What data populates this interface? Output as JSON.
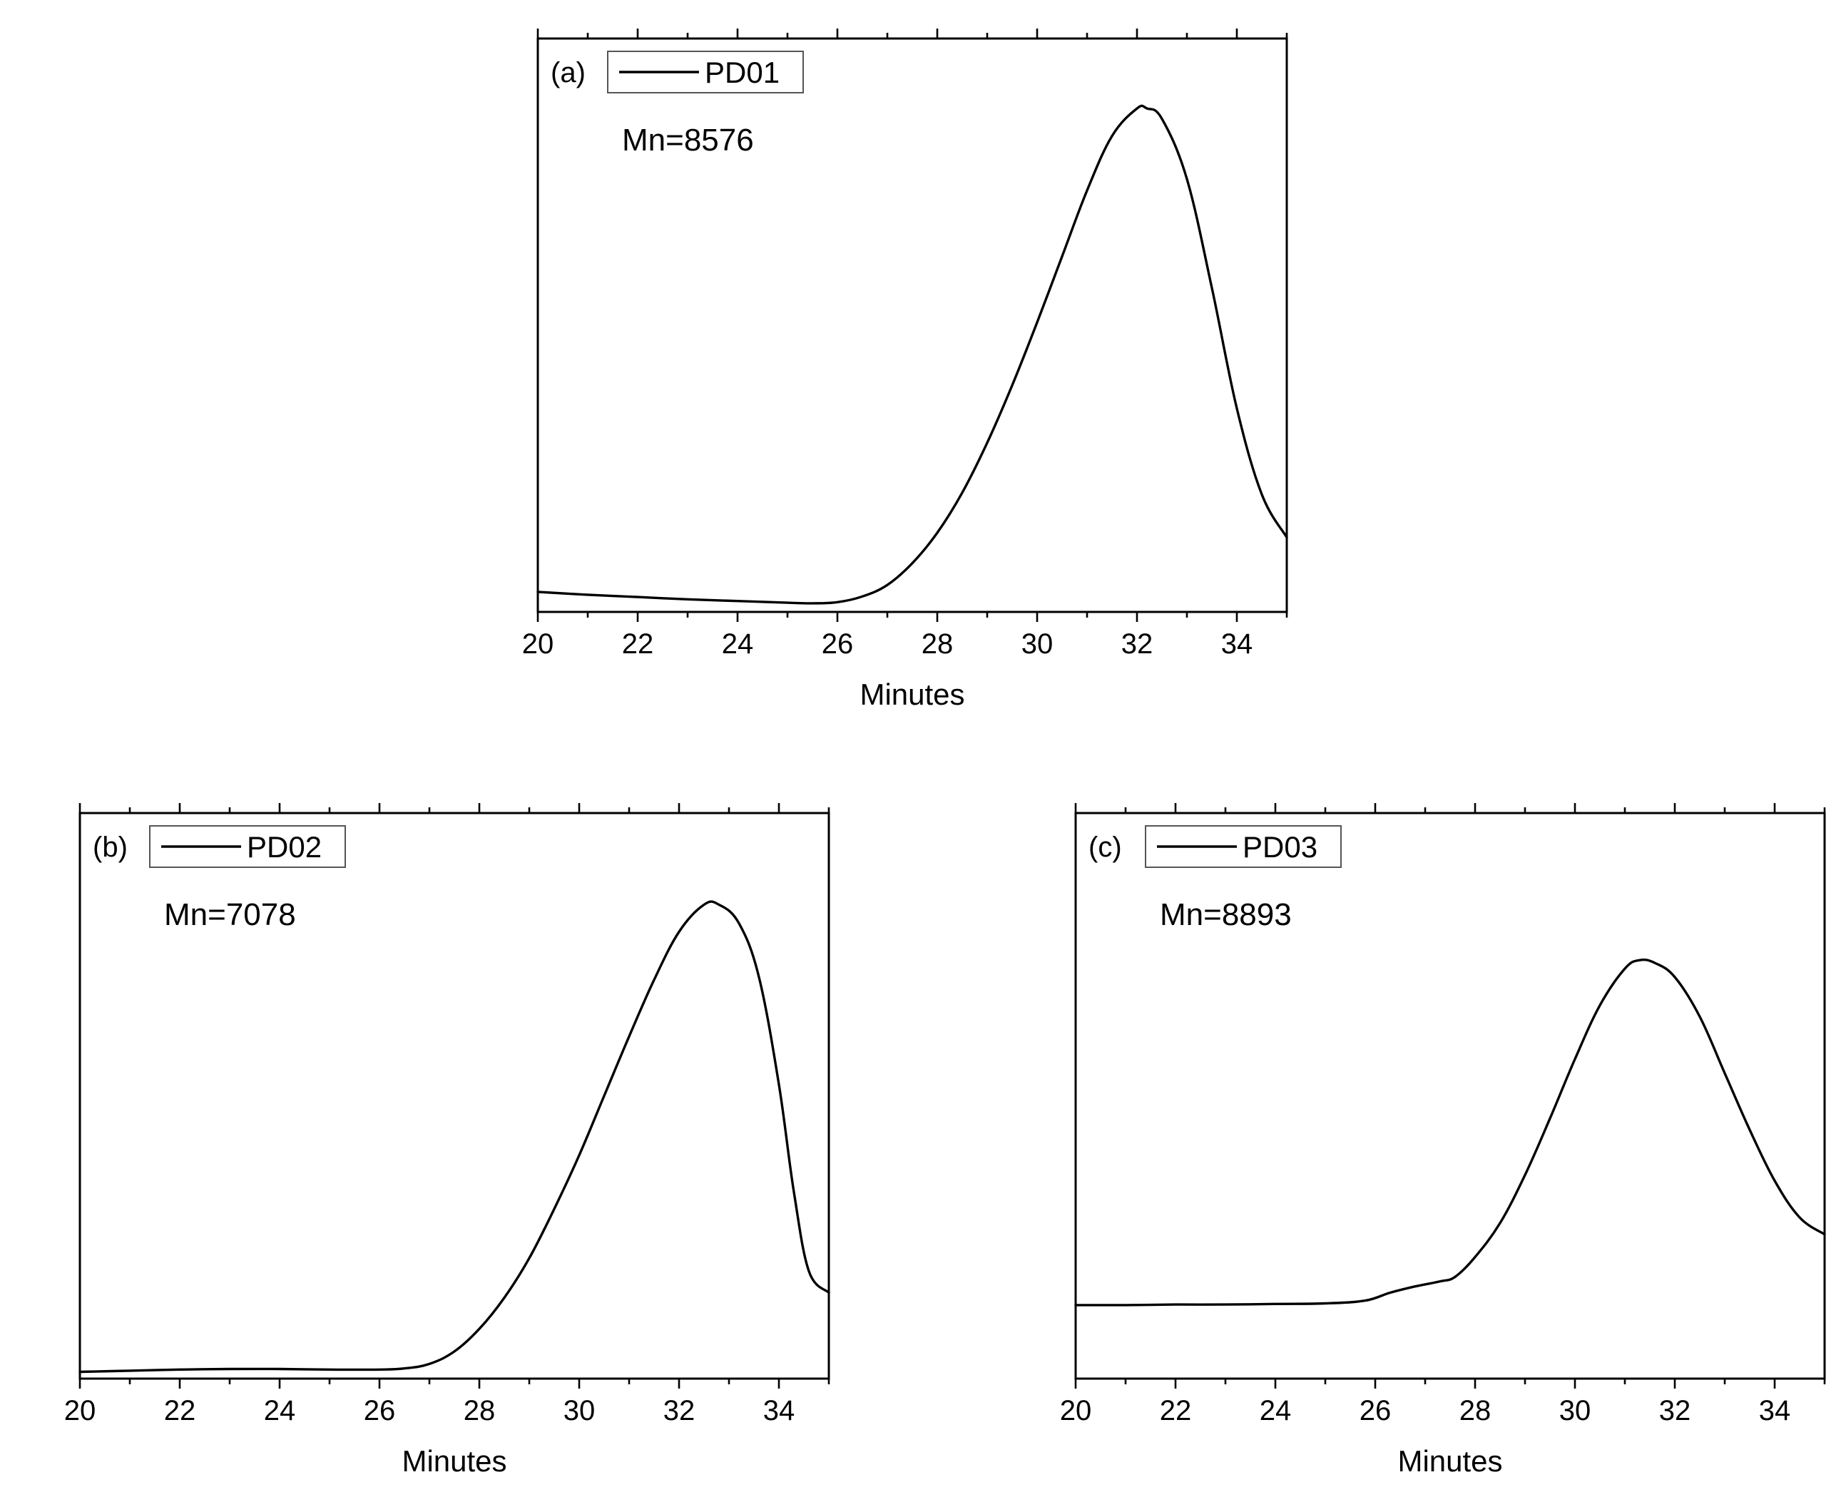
{
  "chart_data": [
    {
      "type": "line",
      "panel_label": "(a)",
      "annotation": "Mn=8576",
      "xlabel": "Minutes",
      "ylabel": "",
      "xlim": [
        20,
        35
      ],
      "ylim": [
        0,
        1
      ],
      "x_ticks": [
        "20",
        "22",
        "24",
        "26",
        "28",
        "30",
        "32",
        "34"
      ],
      "y_ticks_shown": false,
      "grid": false,
      "legend_position": "top-left",
      "series": [
        {
          "name": "PD01",
          "color": "#000000",
          "x": [
            20,
            21,
            22,
            23,
            24,
            25,
            25.5,
            26,
            26.5,
            27,
            27.5,
            28,
            28.5,
            29,
            29.5,
            30,
            30.5,
            31,
            31.5,
            32,
            32.2,
            32.5,
            33,
            33.5,
            34,
            34.5,
            35
          ],
          "y": [
            0.035,
            0.03,
            0.026,
            0.022,
            0.019,
            0.016,
            0.015,
            0.017,
            0.027,
            0.047,
            0.085,
            0.138,
            0.208,
            0.295,
            0.395,
            0.505,
            0.62,
            0.735,
            0.83,
            0.878,
            0.878,
            0.86,
            0.755,
            0.565,
            0.355,
            0.205,
            0.13
          ]
        }
      ]
    },
    {
      "type": "line",
      "panel_label": "(b)",
      "annotation": "Mn=7078",
      "xlabel": "Minutes",
      "ylabel": "",
      "xlim": [
        20,
        35
      ],
      "ylim": [
        0,
        1
      ],
      "x_ticks": [
        "20",
        "22",
        "24",
        "26",
        "28",
        "30",
        "32",
        "34"
      ],
      "y_ticks_shown": false,
      "grid": false,
      "legend_position": "top-left",
      "series": [
        {
          "name": "PD02",
          "color": "#000000",
          "x": [
            20,
            21,
            22,
            23,
            24,
            25,
            26,
            26.5,
            27,
            27.5,
            28,
            28.5,
            29,
            29.5,
            30,
            30.5,
            31,
            31.5,
            32,
            32.5,
            32.8,
            33.2,
            33.6,
            34,
            34.3,
            34.6,
            35
          ],
          "y": [
            0.012,
            0.014,
            0.016,
            0.017,
            0.017,
            0.016,
            0.016,
            0.018,
            0.026,
            0.048,
            0.088,
            0.143,
            0.213,
            0.3,
            0.395,
            0.5,
            0.605,
            0.705,
            0.79,
            0.838,
            0.838,
            0.805,
            0.71,
            0.52,
            0.33,
            0.19,
            0.152
          ]
        }
      ]
    },
    {
      "type": "line",
      "panel_label": "(c)",
      "annotation": "Mn=8893",
      "xlabel": "Minutes",
      "ylabel": "",
      "xlim": [
        20,
        35
      ],
      "ylim": [
        0,
        1
      ],
      "x_ticks": [
        "20",
        "22",
        "24",
        "26",
        "28",
        "30",
        "32",
        "34"
      ],
      "y_ticks_shown": false,
      "grid": false,
      "legend_position": "top-left",
      "series": [
        {
          "name": "PD03",
          "color": "#000000",
          "x": [
            20,
            21,
            22,
            23,
            24,
            25,
            25.8,
            26.3,
            26.8,
            27.3,
            27.6,
            28,
            28.5,
            29,
            29.5,
            30,
            30.5,
            31,
            31.3,
            31.6,
            32,
            32.5,
            33,
            33.5,
            34,
            34.5,
            35
          ],
          "y": [
            0.13,
            0.13,
            0.131,
            0.131,
            0.132,
            0.133,
            0.138,
            0.152,
            0.163,
            0.172,
            0.18,
            0.215,
            0.275,
            0.36,
            0.46,
            0.565,
            0.66,
            0.725,
            0.74,
            0.735,
            0.71,
            0.64,
            0.54,
            0.44,
            0.35,
            0.285,
            0.255
          ]
        }
      ]
    }
  ]
}
